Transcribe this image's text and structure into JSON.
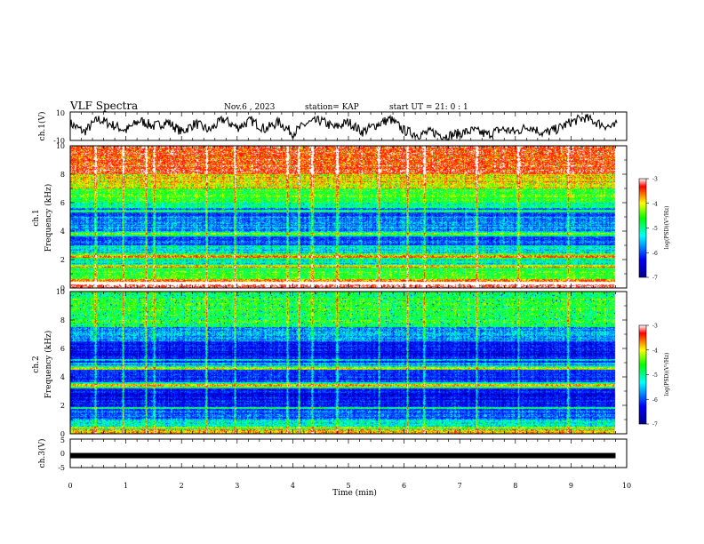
{
  "header": {
    "title": "VLF Spectra",
    "date": "Nov.6 , 2023",
    "station": "station= KAP",
    "start": "start UT = 21: 0 : 1"
  },
  "chart_data": [
    {
      "type": "line",
      "panel": "ch1-waveform",
      "ylabel": "ch.1(V)",
      "ylim": [
        -10,
        10
      ],
      "yticks": [
        "10",
        "-10"
      ],
      "xlim": [
        0,
        10
      ],
      "note_values": "approximate envelope of the waveform trace (V) at 0.25-min steps",
      "x": [
        0,
        0.25,
        0.5,
        0.75,
        1,
        1.25,
        1.5,
        1.75,
        2,
        2.25,
        2.5,
        2.75,
        3,
        3.25,
        3.5,
        3.75,
        4,
        4.25,
        4.5,
        4.75,
        5,
        5.25,
        5.5,
        5.75,
        6,
        6.25,
        6.5,
        6.75,
        7,
        7.25,
        7.5,
        7.75,
        8,
        8.25,
        8.5,
        8.75,
        9,
        9.25,
        9.5,
        9.75
      ],
      "y": [
        2,
        -4,
        5,
        1,
        -3,
        4,
        0,
        3,
        -4,
        2,
        -3,
        5,
        -1,
        4,
        -2,
        3,
        -5,
        2,
        4,
        -1,
        3,
        -4,
        1,
        5,
        -3,
        -6,
        -4,
        -7,
        -5,
        -3,
        -6,
        -2,
        -4,
        0,
        -5,
        -2,
        3,
        6,
        2,
        -1
      ]
    },
    {
      "type": "heatmap",
      "panel": "ch1-spectrogram",
      "ylabel": "ch.1 Frequency (kHz)",
      "ylim": [
        0,
        10
      ],
      "yticks": [
        "0",
        "2",
        "4",
        "6",
        "8",
        "10"
      ],
      "xlim": [
        0,
        10
      ],
      "colorbar": {
        "label": "log(PSD)(V²/Hz)",
        "range": [
          -7,
          -3
        ],
        "ticks": [
          "-3",
          "-4",
          "-5",
          "-6",
          "-7"
        ]
      },
      "bands_khz_log_psd": [
        [
          0,
          0.3,
          -3.0
        ],
        [
          0.3,
          0.6,
          -3.5
        ],
        [
          0.6,
          1.5,
          -4.6
        ],
        [
          1.5,
          2.0,
          -5.2
        ],
        [
          2.0,
          2.4,
          -4.6
        ],
        [
          2.4,
          3.0,
          -5.3
        ],
        [
          3.0,
          3.6,
          -5.9
        ],
        [
          3.6,
          4.0,
          -5.2
        ],
        [
          4.0,
          5.0,
          -5.7
        ],
        [
          5.0,
          5.6,
          -5.9
        ],
        [
          5.6,
          6.0,
          -5.0
        ],
        [
          6.0,
          7.0,
          -4.6
        ],
        [
          7.0,
          8.0,
          -3.9
        ],
        [
          8.0,
          10.0,
          -3.3
        ]
      ],
      "line_khz": [
        0.3,
        1.5,
        2.2,
        3.8,
        5.4
      ],
      "spike_times_min": [
        0.45,
        0.95,
        1.35,
        1.5,
        2.45,
        2.95,
        3.9,
        4.1,
        4.35,
        4.8,
        5.55,
        6.05,
        6.35,
        7.3,
        8.05,
        8.95
      ]
    },
    {
      "type": "heatmap",
      "panel": "ch2-spectrogram",
      "ylabel": "ch.2 Frequency (kHz)",
      "ylim": [
        0,
        10
      ],
      "yticks": [
        "0",
        "2",
        "4",
        "6",
        "8",
        "10"
      ],
      "xlim": [
        0,
        10
      ],
      "colorbar": {
        "label": "log(PSD)(V²/Hz)",
        "range": [
          -7,
          -3
        ],
        "ticks": [
          "-3",
          "-4",
          "-5",
          "-6",
          "-7"
        ]
      },
      "bands_khz_log_psd": [
        [
          0,
          0.3,
          -3.9
        ],
        [
          0.3,
          1.0,
          -5.2
        ],
        [
          1.0,
          1.9,
          -5.9
        ],
        [
          1.9,
          3.2,
          -6.3
        ],
        [
          3.2,
          3.6,
          -4.9
        ],
        [
          3.6,
          4.5,
          -6.1
        ],
        [
          4.5,
          4.8,
          -5.0
        ],
        [
          4.8,
          5.0,
          -5.6
        ],
        [
          5.0,
          6.5,
          -6.3
        ],
        [
          6.5,
          7.5,
          -5.6
        ],
        [
          7.5,
          10.0,
          -4.7
        ]
      ],
      "line_khz": [
        0.4,
        1.8,
        3.4,
        4.6,
        5.2
      ],
      "spike_times_min": [
        0.45,
        0.95,
        1.35,
        1.5,
        2.45,
        2.95,
        3.9,
        4.1,
        4.35,
        4.8,
        5.55,
        6.05,
        6.35,
        7.3,
        8.05,
        8.95
      ]
    },
    {
      "type": "line",
      "panel": "ch3-signal",
      "ylabel": "ch.3(V)",
      "ylim": [
        -5,
        5
      ],
      "yticks": [
        "5",
        "0",
        "-5"
      ],
      "xlim": [
        0,
        10
      ],
      "xlabel": "Time (min)",
      "xticks": [
        "0",
        "1",
        "2",
        "3",
        "4",
        "5",
        "6",
        "7",
        "8",
        "9",
        "10"
      ],
      "x": [
        0,
        9.8
      ],
      "y": [
        -0.8,
        -0.8
      ]
    }
  ],
  "colors": {
    "axis": "#000000",
    "colormap": [
      "#00008a",
      "#0000ff",
      "#00ffff",
      "#00ff00",
      "#ffff00",
      "#ff0000",
      "#ffffff"
    ]
  }
}
